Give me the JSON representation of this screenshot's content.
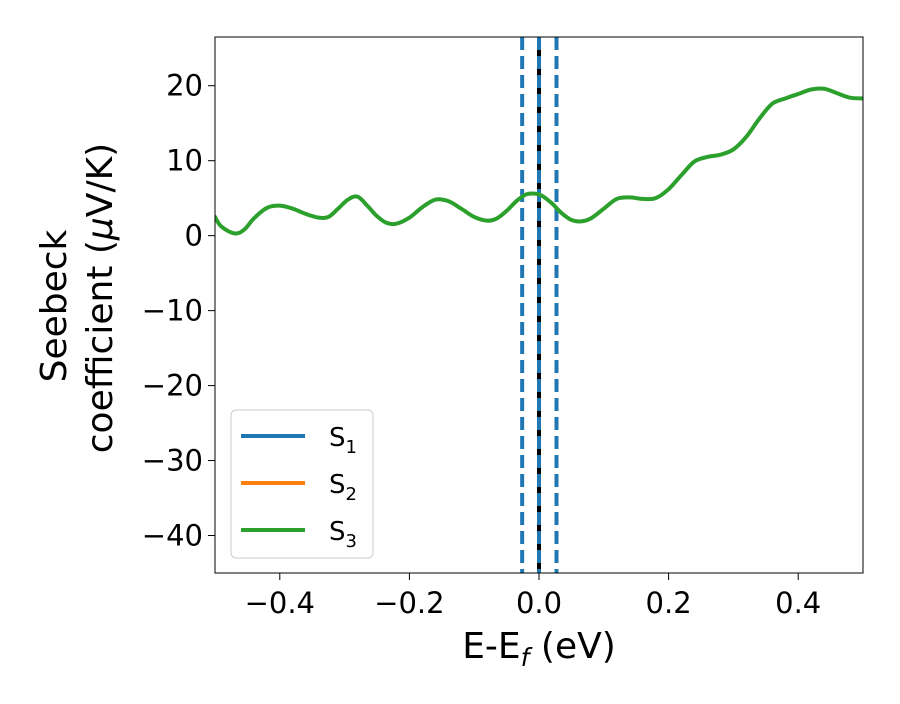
{
  "chart_data": {
    "type": "line",
    "xlabel_main": "E-E",
    "xlabel_sub": "f",
    "xlabel_tail": " (eV)",
    "ylabel_line1": "Seebeck",
    "ylabel_line2_prefix": "coefficient  (",
    "ylabel_mu": "μ",
    "ylabel_line2_suffix": "V/K)",
    "xlim": [
      -0.5,
      0.5
    ],
    "ylim": [
      -45,
      26.5
    ],
    "xticks": [
      -0.4,
      -0.2,
      0.0,
      0.2,
      0.4
    ],
    "xtick_labels": [
      "−0.4",
      "−0.2",
      "0.0",
      "0.2",
      "0.4"
    ],
    "yticks": [
      -40,
      -30,
      -20,
      -10,
      0,
      10,
      20
    ],
    "ytick_labels": [
      "−40",
      "−30",
      "−20",
      "−10",
      "0",
      "10",
      "20"
    ],
    "grid": false,
    "legend_position": "lower-left",
    "series": [
      {
        "name": "S",
        "sub": "1",
        "color": "#1f77b4",
        "x": [],
        "y": []
      },
      {
        "name": "S",
        "sub": "2",
        "color": "#ff7f0e",
        "x": [],
        "y": []
      },
      {
        "name": "S",
        "sub": "3",
        "color": "#2ca02c",
        "x": [
          -0.5,
          -0.49,
          -0.47,
          -0.455,
          -0.44,
          -0.42,
          -0.4,
          -0.38,
          -0.36,
          -0.34,
          -0.325,
          -0.31,
          -0.295,
          -0.28,
          -0.265,
          -0.25,
          -0.235,
          -0.22,
          -0.2,
          -0.18,
          -0.16,
          -0.14,
          -0.12,
          -0.1,
          -0.08,
          -0.065,
          -0.05,
          -0.035,
          -0.02,
          -0.005,
          0.005,
          0.02,
          0.035,
          0.05,
          0.065,
          0.08,
          0.1,
          0.12,
          0.14,
          0.16,
          0.18,
          0.2,
          0.22,
          0.24,
          0.26,
          0.28,
          0.3,
          0.32,
          0.34,
          0.36,
          0.38,
          0.4,
          0.42,
          0.44,
          0.46,
          0.48,
          0.5
        ],
        "y": [
          2.5,
          1.2,
          0.3,
          0.8,
          2.3,
          3.7,
          4.0,
          3.6,
          2.9,
          2.4,
          2.5,
          3.6,
          4.8,
          5.2,
          4.0,
          2.6,
          1.7,
          1.6,
          2.4,
          3.8,
          4.8,
          4.6,
          3.6,
          2.5,
          2.0,
          2.3,
          3.3,
          4.6,
          5.5,
          5.6,
          5.3,
          4.3,
          3.0,
          2.1,
          1.9,
          2.3,
          3.6,
          4.9,
          5.1,
          4.9,
          5.0,
          6.2,
          8.1,
          9.9,
          10.5,
          10.8,
          11.5,
          13.2,
          15.6,
          17.6,
          18.3,
          18.9,
          19.5,
          19.6,
          19.0,
          18.4,
          18.3
        ]
      }
    ],
    "vlines": [
      {
        "x": -0.026,
        "color": "#1f77b4",
        "style": "dashed"
      },
      {
        "x": 0.027,
        "color": "#1f77b4",
        "style": "dashed"
      },
      {
        "x": 0.0,
        "color": "#000000",
        "style": "solid"
      },
      {
        "x": 0.0,
        "color": "#1f77b4",
        "style": "dashed"
      }
    ]
  }
}
